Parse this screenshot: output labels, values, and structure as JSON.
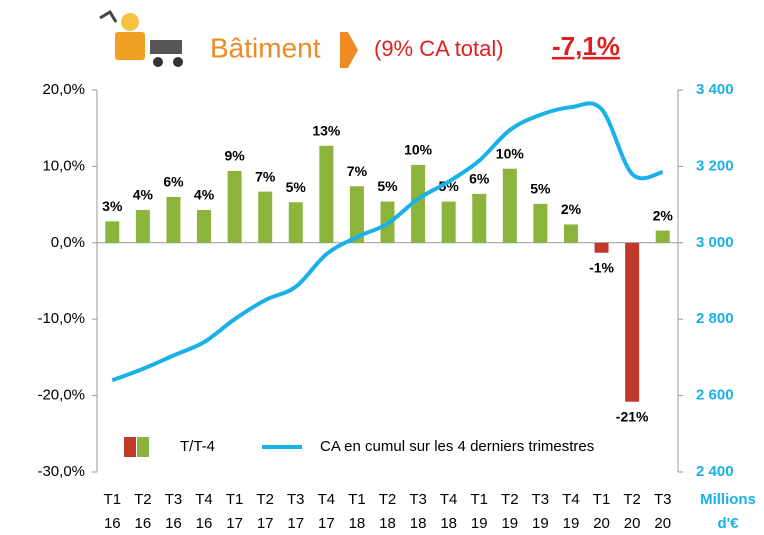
{
  "header": {
    "sector": "Bâtiment",
    "share": "(9% CA total)",
    "change": "-7,1%"
  },
  "chart_data": {
    "type": "bar_line",
    "categories": [
      "T1 16",
      "T2 16",
      "T3 16",
      "T4 16",
      "T1 17",
      "T2 17",
      "T3 17",
      "T4 17",
      "T1 18",
      "T2 18",
      "T3 18",
      "T4 18",
      "T1 19",
      "T2 19",
      "T3 19",
      "T4 19",
      "T1 20",
      "T2 20",
      "T3 20"
    ],
    "series": [
      {
        "name": "T/T-4",
        "type": "bar",
        "color": "#8cb43c",
        "negative_color": "#c0392b",
        "values": [
          2.8,
          4.3,
          6.0,
          4.3,
          9.4,
          6.7,
          5.3,
          12.7,
          7.4,
          5.4,
          10.2,
          5.4,
          6.4,
          9.7,
          5.1,
          2.4,
          -1.3,
          -20.8,
          1.6
        ],
        "value_labels": [
          "3%",
          "4%",
          "6%",
          "4%",
          "9%",
          "7%",
          "5%",
          "13%",
          "7%",
          "5%",
          "10%",
          "5%",
          "6%",
          "10%",
          "5%",
          "2%",
          "-1%",
          "-21%",
          "2%"
        ]
      },
      {
        "name": "CA en cumul sur les 4 derniers trimestres",
        "type": "line",
        "axis": "y2",
        "color": "#1ab0e8",
        "values": [
          2640,
          2670,
          2705,
          2740,
          2800,
          2850,
          2885,
          2970,
          3015,
          3050,
          3115,
          3160,
          3215,
          3295,
          3335,
          3355,
          3350,
          3180,
          3185
        ]
      }
    ],
    "ylim": [
      -30,
      20
    ],
    "yticks": [
      {
        "value": -30,
        "label": "-30,0%"
      },
      {
        "value": -20,
        "label": "-20,0%"
      },
      {
        "value": -10,
        "label": "-10,0%"
      },
      {
        "value": 0,
        "label": "0,0%"
      },
      {
        "value": 10,
        "label": "10,0%"
      },
      {
        "value": 20,
        "label": "20,0%"
      }
    ],
    "y2lim": [
      2400,
      3400
    ],
    "y2ticks": [
      {
        "value": 2400,
        "label": "2 400"
      },
      {
        "value": 2600,
        "label": "2 600"
      },
      {
        "value": 2800,
        "label": "2 800"
      },
      {
        "value": 3000,
        "label": "3 000"
      },
      {
        "value": 3200,
        "label": "3 200"
      },
      {
        "value": 3400,
        "label": "3 400"
      }
    ],
    "y2label": "Millions d'€",
    "legend": "bottom"
  }
}
